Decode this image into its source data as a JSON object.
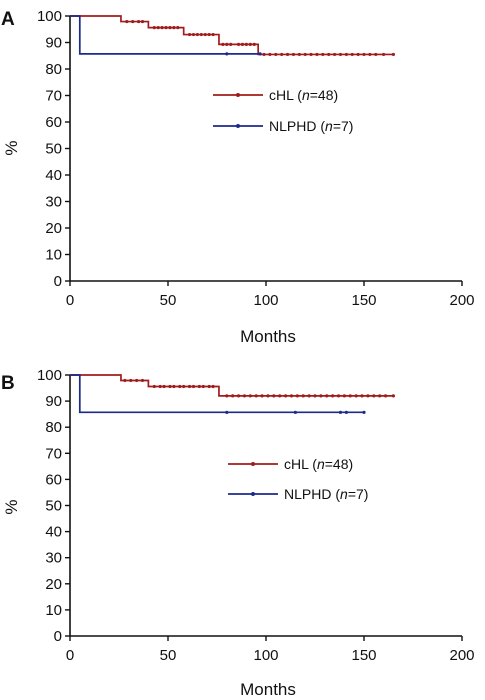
{
  "colors": {
    "chl": "#a01c1c",
    "nlphd": "#1c2a8c",
    "axis": "#111111"
  },
  "chart_data": [
    {
      "panel": "A",
      "type": "line",
      "step": true,
      "xlabel": "Months",
      "ylabel": "%",
      "xlim": [
        0,
        200
      ],
      "ylim": [
        0,
        100
      ],
      "xticks": [
        0,
        50,
        100,
        150,
        200
      ],
      "yticks": [
        0,
        10,
        20,
        30,
        40,
        50,
        60,
        70,
        80,
        90,
        100
      ],
      "grid": false,
      "legend": "center-right",
      "series": [
        {
          "name": "cHL",
          "n": "n=48",
          "color": "#a01c1c",
          "x": [
            0,
            26,
            40,
            58,
            76,
            96,
            165
          ],
          "y": [
            100,
            97.9,
            95.6,
            93,
            89.3,
            85.5,
            85.5
          ],
          "censor_x": [
            29,
            32,
            35,
            37,
            43,
            45,
            47,
            49,
            51,
            53,
            55,
            61,
            63,
            65,
            67,
            69,
            71,
            73,
            78,
            80,
            82,
            86,
            88,
            90,
            92,
            94,
            99,
            102,
            105,
            108,
            111,
            114,
            117,
            120,
            123,
            126,
            129,
            132,
            135,
            138,
            141,
            144,
            147,
            150,
            153,
            156,
            160,
            165
          ]
        },
        {
          "name": "NLPHD",
          "n": "n=7",
          "color": "#1c2a8c",
          "x": [
            0,
            5,
            97
          ],
          "y": [
            100,
            85.7,
            85.7
          ],
          "censor_x": [
            80,
            97
          ]
        }
      ]
    },
    {
      "panel": "B",
      "type": "line",
      "step": true,
      "xlabel": "Months",
      "ylabel": "%",
      "xlim": [
        0,
        200
      ],
      "ylim": [
        0,
        100
      ],
      "xticks": [
        0,
        50,
        100,
        150,
        200
      ],
      "yticks": [
        0,
        10,
        20,
        30,
        40,
        50,
        60,
        70,
        80,
        90,
        100
      ],
      "grid": false,
      "legend": "center-right",
      "series": [
        {
          "name": "cHL",
          "n": "n=48",
          "color": "#a01c1c",
          "x": [
            0,
            26,
            40,
            76,
            165
          ],
          "y": [
            100,
            97.9,
            95.6,
            92,
            92
          ],
          "censor_x": [
            28,
            31,
            34,
            37,
            43,
            46,
            48,
            51,
            53,
            56,
            58,
            61,
            63,
            66,
            68,
            71,
            73,
            80,
            83,
            86,
            89,
            92,
            95,
            98,
            101,
            104,
            107,
            110,
            113,
            116,
            119,
            122,
            125,
            128,
            131,
            134,
            137,
            140,
            143,
            146,
            149,
            152,
            155,
            158,
            161,
            165
          ]
        },
        {
          "name": "NLPHD",
          "n": "n=7",
          "color": "#1c2a8c",
          "x": [
            0,
            5,
            150
          ],
          "y": [
            100,
            85.7,
            85.7
          ],
          "censor_x": [
            80,
            115,
            138,
            141,
            150
          ]
        }
      ]
    }
  ]
}
